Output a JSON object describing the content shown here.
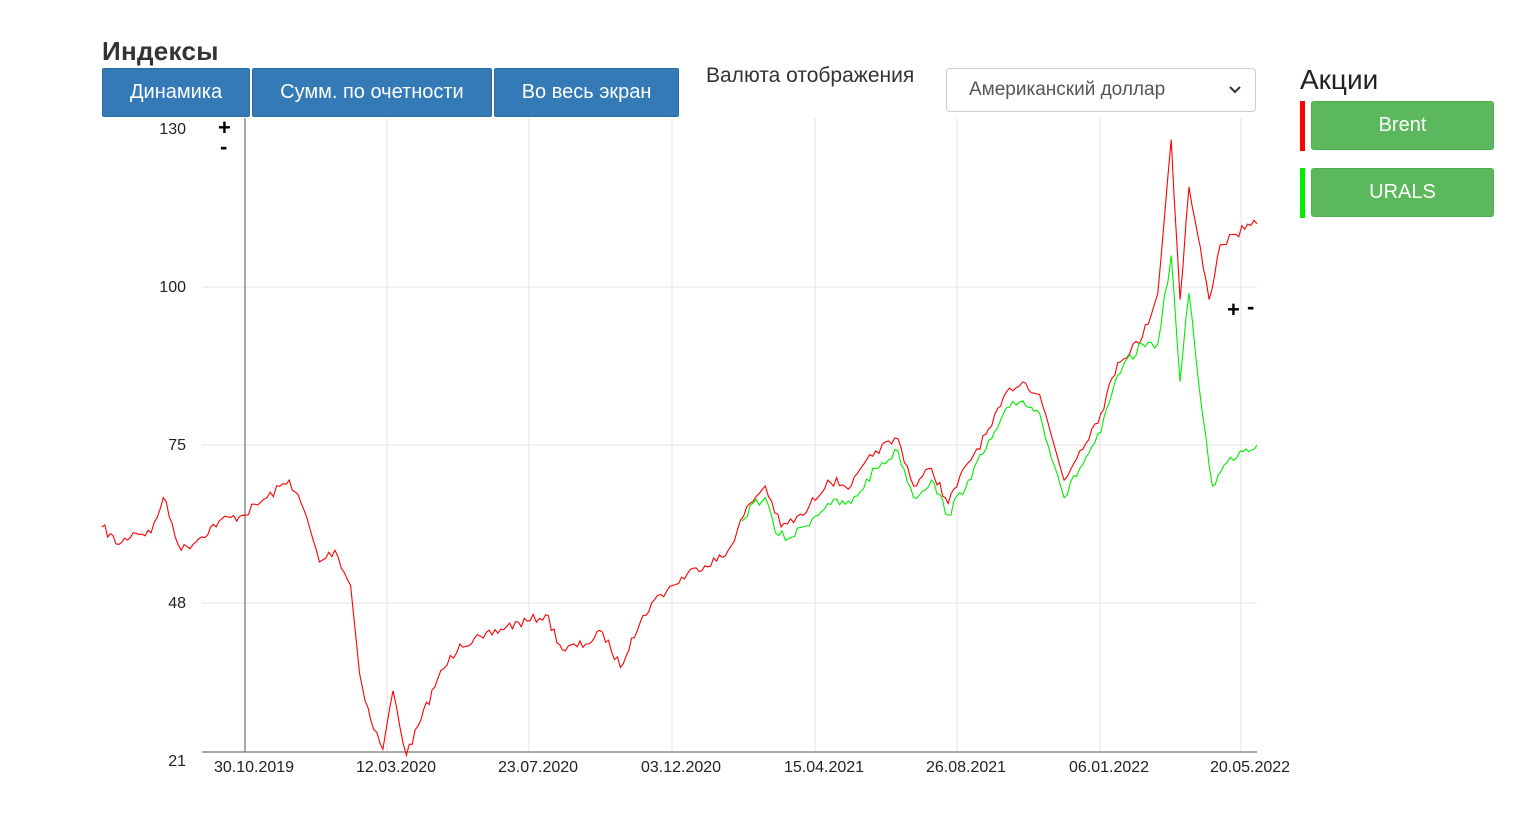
{
  "page": {
    "title": "Индексы",
    "buttons": {
      "dynamics": "Динамика",
      "cumulative": "Сумм. по очетности",
      "fullscreen": "Во весь экран"
    },
    "currency": {
      "label": "Валюта отображения",
      "selected": "Американский доллар"
    },
    "stocks": {
      "title": "Акции",
      "items": [
        {
          "label": "Brent",
          "color": "#ff0000"
        },
        {
          "label": "URALS",
          "color": "#00ee00"
        }
      ]
    },
    "zoom": {
      "plus": "+",
      "minus": "-"
    }
  },
  "colors": {
    "button_blue": "#337ab7",
    "button_green": "#5cb85c",
    "brent": "#ff0000",
    "urals": "#00ee00"
  },
  "chart_data": {
    "type": "line",
    "title": "",
    "xlabel": "",
    "ylabel": "",
    "ylim": [
      21,
      130
    ],
    "y_ticks": [
      "130",
      "100",
      "75",
      "48",
      "21"
    ],
    "x_tick_labels": [
      "30.10.2019",
      "12.03.2020",
      "23.07.2020",
      "03.12.2020",
      "15.04.2021",
      "26.08.2021",
      "06.01.2022",
      "20.05.2022"
    ],
    "x_range": [
      "2019-07-23",
      "2022-05-24"
    ],
    "grid": true,
    "series": [
      {
        "name": "Brent",
        "color": "#ff0000",
        "points": [
          [
            "2019-07-23",
            61
          ],
          [
            "2019-08-07",
            58
          ],
          [
            "2019-08-20",
            60
          ],
          [
            "2019-09-05",
            60
          ],
          [
            "2019-09-16",
            66
          ],
          [
            "2019-10-02",
            57
          ],
          [
            "2019-10-18",
            59
          ],
          [
            "2019-11-05",
            62
          ],
          [
            "2019-11-26",
            63
          ],
          [
            "2019-12-18",
            66
          ],
          [
            "2020-01-07",
            69
          ],
          [
            "2020-01-20",
            64
          ],
          [
            "2020-02-03",
            55
          ],
          [
            "2020-02-17",
            57
          ],
          [
            "2020-03-02",
            51
          ],
          [
            "2020-03-10",
            36
          ],
          [
            "2020-03-20",
            28
          ],
          [
            "2020-03-31",
            23
          ],
          [
            "2020-04-09",
            33
          ],
          [
            "2020-04-21",
            22
          ],
          [
            "2020-05-04",
            28
          ],
          [
            "2020-05-19",
            35
          ],
          [
            "2020-06-08",
            41
          ],
          [
            "2020-06-29",
            42
          ],
          [
            "2020-07-20",
            44
          ],
          [
            "2020-08-10",
            45
          ],
          [
            "2020-08-24",
            46
          ],
          [
            "2020-09-08",
            40
          ],
          [
            "2020-09-29",
            41
          ],
          [
            "2020-10-14",
            43
          ],
          [
            "2020-10-30",
            37
          ],
          [
            "2020-11-09",
            42
          ],
          [
            "2020-11-27",
            48
          ],
          [
            "2020-12-16",
            51
          ],
          [
            "2021-01-06",
            54
          ],
          [
            "2021-02-01",
            56
          ],
          [
            "2021-02-23",
            65
          ],
          [
            "2021-03-09",
            68
          ],
          [
            "2021-03-23",
            61
          ],
          [
            "2021-04-12",
            63
          ],
          [
            "2021-05-04",
            69
          ],
          [
            "2021-05-25",
            68
          ],
          [
            "2021-06-16",
            74
          ],
          [
            "2021-07-06",
            76
          ],
          [
            "2021-07-20",
            68
          ],
          [
            "2021-08-05",
            71
          ],
          [
            "2021-08-20",
            65
          ],
          [
            "2021-09-07",
            72
          ],
          [
            "2021-09-28",
            78
          ],
          [
            "2021-10-14",
            84
          ],
          [
            "2021-10-26",
            85
          ],
          [
            "2021-11-10",
            83
          ],
          [
            "2021-11-26",
            73
          ],
          [
            "2021-12-02",
            69
          ],
          [
            "2021-12-16",
            74
          ],
          [
            "2022-01-04",
            80
          ],
          [
            "2022-01-19",
            88
          ],
          [
            "2022-02-10",
            92
          ],
          [
            "2022-02-24",
            99
          ],
          [
            "2022-03-08",
            128
          ],
          [
            "2022-03-16",
            98
          ],
          [
            "2022-03-24",
            119
          ],
          [
            "2022-04-11",
            98
          ],
          [
            "2022-04-21",
            108
          ],
          [
            "2022-05-05",
            110
          ],
          [
            "2022-05-13",
            111
          ],
          [
            "2022-05-24",
            112
          ]
        ]
      },
      {
        "name": "URALS",
        "color": "#00ee00",
        "points": [
          [
            "2021-02-16",
            62
          ],
          [
            "2021-02-26",
            65
          ],
          [
            "2021-03-09",
            66
          ],
          [
            "2021-03-18",
            60
          ],
          [
            "2021-03-30",
            59
          ],
          [
            "2021-04-12",
            61
          ],
          [
            "2021-05-04",
            65
          ],
          [
            "2021-05-25",
            65
          ],
          [
            "2021-06-16",
            71
          ],
          [
            "2021-07-06",
            74
          ],
          [
            "2021-07-20",
            66
          ],
          [
            "2021-08-05",
            69
          ],
          [
            "2021-08-20",
            63
          ],
          [
            "2021-09-07",
            69
          ],
          [
            "2021-09-28",
            76
          ],
          [
            "2021-10-14",
            81
          ],
          [
            "2021-10-26",
            82
          ],
          [
            "2021-11-10",
            80
          ],
          [
            "2021-11-26",
            70
          ],
          [
            "2021-12-02",
            66
          ],
          [
            "2021-12-16",
            71
          ],
          [
            "2022-01-04",
            77
          ],
          [
            "2022-01-19",
            86
          ],
          [
            "2022-02-10",
            91
          ],
          [
            "2022-02-24",
            91
          ],
          [
            "2022-03-08",
            106
          ],
          [
            "2022-03-16",
            85
          ],
          [
            "2022-03-24",
            99
          ],
          [
            "2022-04-05",
            80
          ],
          [
            "2022-04-14",
            68
          ],
          [
            "2022-04-27",
            72
          ],
          [
            "2022-05-09",
            74
          ],
          [
            "2022-05-24",
            75
          ]
        ]
      }
    ]
  }
}
